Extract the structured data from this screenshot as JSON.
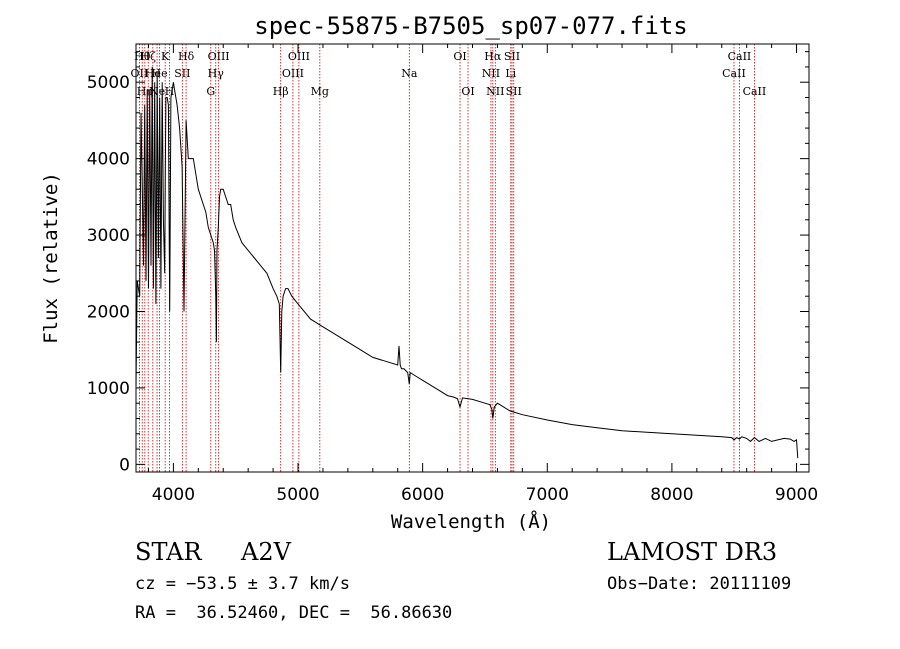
{
  "chart_data": {
    "type": "line",
    "title": "spec-55875-B7505_sp07-077.fits",
    "xlabel": "Wavelength (Å)",
    "ylabel": "Flux (relative)",
    "xlim": [
      3700,
      9100
    ],
    "ylim": [
      -100,
      5500
    ],
    "xticks": [
      4000,
      5000,
      6000,
      7000,
      8000,
      9000
    ],
    "yticks": [
      0,
      1000,
      2000,
      3000,
      4000,
      5000
    ],
    "series": [
      {
        "name": "spectrum",
        "x": [
          3700,
          3710,
          3730,
          3740,
          3750,
          3760,
          3770,
          3780,
          3790,
          3800,
          3810,
          3820,
          3830,
          3840,
          3850,
          3860,
          3870,
          3880,
          3890,
          3900,
          3910,
          3920,
          3930,
          3935,
          3940,
          3950,
          3960,
          3970,
          3980,
          3990,
          4000,
          4010,
          4030,
          4050,
          4070,
          4085,
          4102,
          4120,
          4140,
          4160,
          4180,
          4200,
          4220,
          4240,
          4260,
          4280,
          4300,
          4320,
          4330,
          4340,
          4345,
          4350,
          4360,
          4370,
          4380,
          4400,
          4420,
          4440,
          4460,
          4480,
          4500,
          4550,
          4600,
          4650,
          4700,
          4750,
          4800,
          4830,
          4850,
          4861,
          4870,
          4880,
          4900,
          4920,
          4950,
          5000,
          5100,
          5200,
          5300,
          5400,
          5500,
          5600,
          5700,
          5800,
          5810,
          5820,
          5830,
          5850,
          5880,
          5893,
          5900,
          5950,
          6000,
          6100,
          6200,
          6250,
          6280,
          6300,
          6320,
          6400,
          6500,
          6540,
          6555,
          6563,
          6575,
          6600,
          6700,
          6800,
          7000,
          7200,
          7400,
          7600,
          7800,
          8000,
          8200,
          8400,
          8480,
          8498,
          8520,
          8542,
          8560,
          8600,
          8630,
          8662,
          8700,
          8750,
          8800,
          8850,
          8900,
          8950,
          8980,
          9000,
          9010
        ],
        "values": [
          1000,
          2400,
          2200,
          4600,
          3700,
          2600,
          4700,
          2400,
          4900,
          2300,
          4900,
          2600,
          5200,
          2300,
          5000,
          2100,
          5100,
          2700,
          4800,
          2300,
          5000,
          3200,
          2500,
          3800,
          4800,
          4800,
          4700,
          2000,
          4800,
          4900,
          5000,
          4900,
          4700,
          4400,
          3900,
          2000,
          4500,
          4000,
          4000,
          4000,
          3800,
          3600,
          3500,
          3400,
          3300,
          3100,
          3000,
          2900,
          2800,
          2200,
          1600,
          2800,
          3100,
          3500,
          3600,
          3600,
          3500,
          3400,
          3400,
          3200,
          3100,
          2900,
          2800,
          2700,
          2600,
          2500,
          2300,
          2200,
          2100,
          1200,
          2000,
          2200,
          2300,
          2300,
          2200,
          2100,
          1900,
          1800,
          1700,
          1600,
          1500,
          1400,
          1350,
          1300,
          1550,
          1300,
          1250,
          1250,
          1200,
          1050,
          1200,
          1150,
          1100,
          1000,
          900,
          880,
          860,
          750,
          870,
          850,
          800,
          780,
          720,
          600,
          750,
          800,
          700,
          650,
          580,
          520,
          480,
          440,
          420,
          400,
          380,
          360,
          350,
          320,
          350,
          330,
          360,
          340,
          300,
          350,
          300,
          340,
          300,
          320,
          340,
          330,
          300,
          320,
          80
        ],
        "color": "#000000"
      }
    ],
    "lines": [
      {
        "x": 3727,
        "label": "OII",
        "row": 1
      },
      {
        "x": 3750,
        "label": "Hθ",
        "row": 0
      },
      {
        "x": 3771,
        "label": "Hη",
        "row": 2
      },
      {
        "x": 3798,
        "label": "Hζ",
        "row": 0
      },
      {
        "x": 3835,
        "label": "He",
        "row": 1
      },
      {
        "x": 3869,
        "label": "Ne",
        "row": 2
      },
      {
        "x": 3889,
        "label": "He",
        "row": 1
      },
      {
        "x": 3934,
        "label": "K",
        "row": 0
      },
      {
        "x": 3969,
        "label": "H",
        "row": 2
      },
      {
        "x": 4072,
        "label": "SII",
        "row": 1
      },
      {
        "x": 4102,
        "label": "Hδ",
        "row": 0
      },
      {
        "x": 4300,
        "label": "G",
        "row": 2
      },
      {
        "x": 4340,
        "label": "Hγ",
        "row": 1
      },
      {
        "x": 4363,
        "label": "OIII",
        "row": 0
      },
      {
        "x": 4861,
        "label": "Hβ",
        "row": 2
      },
      {
        "x": 4959,
        "label": "OIII",
        "row": 1
      },
      {
        "x": 5007,
        "label": "OIII",
        "row": 0
      },
      {
        "x": 5175,
        "label": "Mg",
        "row": 2
      },
      {
        "x": 5893,
        "label": "Na",
        "row": 1
      },
      {
        "x": 6300,
        "label": "OI",
        "row": 0
      },
      {
        "x": 6364,
        "label": "OI",
        "row": 2
      },
      {
        "x": 6548,
        "label": "NII",
        "row": 1
      },
      {
        "x": 6563,
        "label": "Hα",
        "row": 0
      },
      {
        "x": 6583,
        "label": "NII",
        "row": 2
      },
      {
        "x": 6707,
        "label": "Li",
        "row": 1
      },
      {
        "x": 6717,
        "label": "SII",
        "row": 0
      },
      {
        "x": 6731,
        "label": "SII",
        "row": 2
      },
      {
        "x": 8498,
        "label": "CaII",
        "row": 1
      },
      {
        "x": 8542,
        "label": "CaII",
        "row": 0
      },
      {
        "x": 8662,
        "label": "CaII",
        "row": 2
      }
    ],
    "line_color": "#cc0000"
  },
  "info": {
    "class": "STAR",
    "subclass": "A2V",
    "survey": "LAMOST DR3",
    "cz": "cz = −53.5 ± 3.7 km/s",
    "obs_date": "Obs−Date: 20111109",
    "coords": "RA =  36.52460, DEC =  56.86630"
  }
}
